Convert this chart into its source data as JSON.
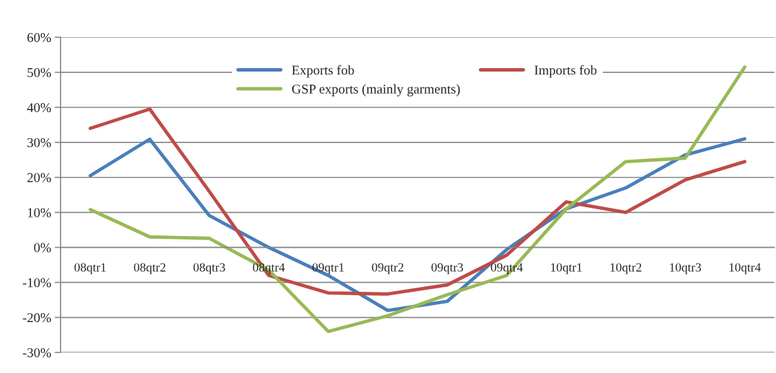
{
  "chart_data": {
    "type": "line",
    "categories": [
      "08qtr1",
      "08qtr2",
      "08qtr3",
      "08qtr4",
      "09qtr1",
      "09qtr2",
      "09qtr3",
      "09qtr4",
      "10qtr1",
      "10qtr2",
      "10qtr3",
      "10qtr4"
    ],
    "series": [
      {
        "name": "Exports fob",
        "color": "#4a7ebb",
        "values": [
          20.5,
          30.9,
          9.1,
          0,
          -8,
          -18,
          -15.4,
          -0.6,
          11,
          17,
          26.4,
          31
        ]
      },
      {
        "name": "Imports fob",
        "color": "#be4b48",
        "values": [
          34,
          39.5,
          16,
          -8,
          -13,
          -13.3,
          -10.7,
          -2.2,
          13,
          10,
          19.3,
          24.5
        ]
      },
      {
        "name": "GSP exports (mainly garments)",
        "color": "#98b954",
        "values": [
          10.8,
          3,
          2.6,
          -6.5,
          -24,
          -19.5,
          -13.5,
          -8,
          11,
          24.5,
          25.5,
          51.5
        ]
      }
    ],
    "ylim": [
      -30,
      60
    ],
    "yticks": [
      {
        "value": -30,
        "label": "-30%"
      },
      {
        "value": -20,
        "label": "-20%"
      },
      {
        "value": -10,
        "label": "-10%"
      },
      {
        "value": 0,
        "label": "0%"
      },
      {
        "value": 10,
        "label": "10%"
      },
      {
        "value": 20,
        "label": "20%"
      },
      {
        "value": 30,
        "label": "30%"
      },
      {
        "value": 40,
        "label": "40%"
      },
      {
        "value": 50,
        "label": "50%"
      },
      {
        "value": 60,
        "label": "60%"
      }
    ],
    "grid": "y",
    "legend": "top",
    "marker": "none",
    "line_style": "solid"
  }
}
